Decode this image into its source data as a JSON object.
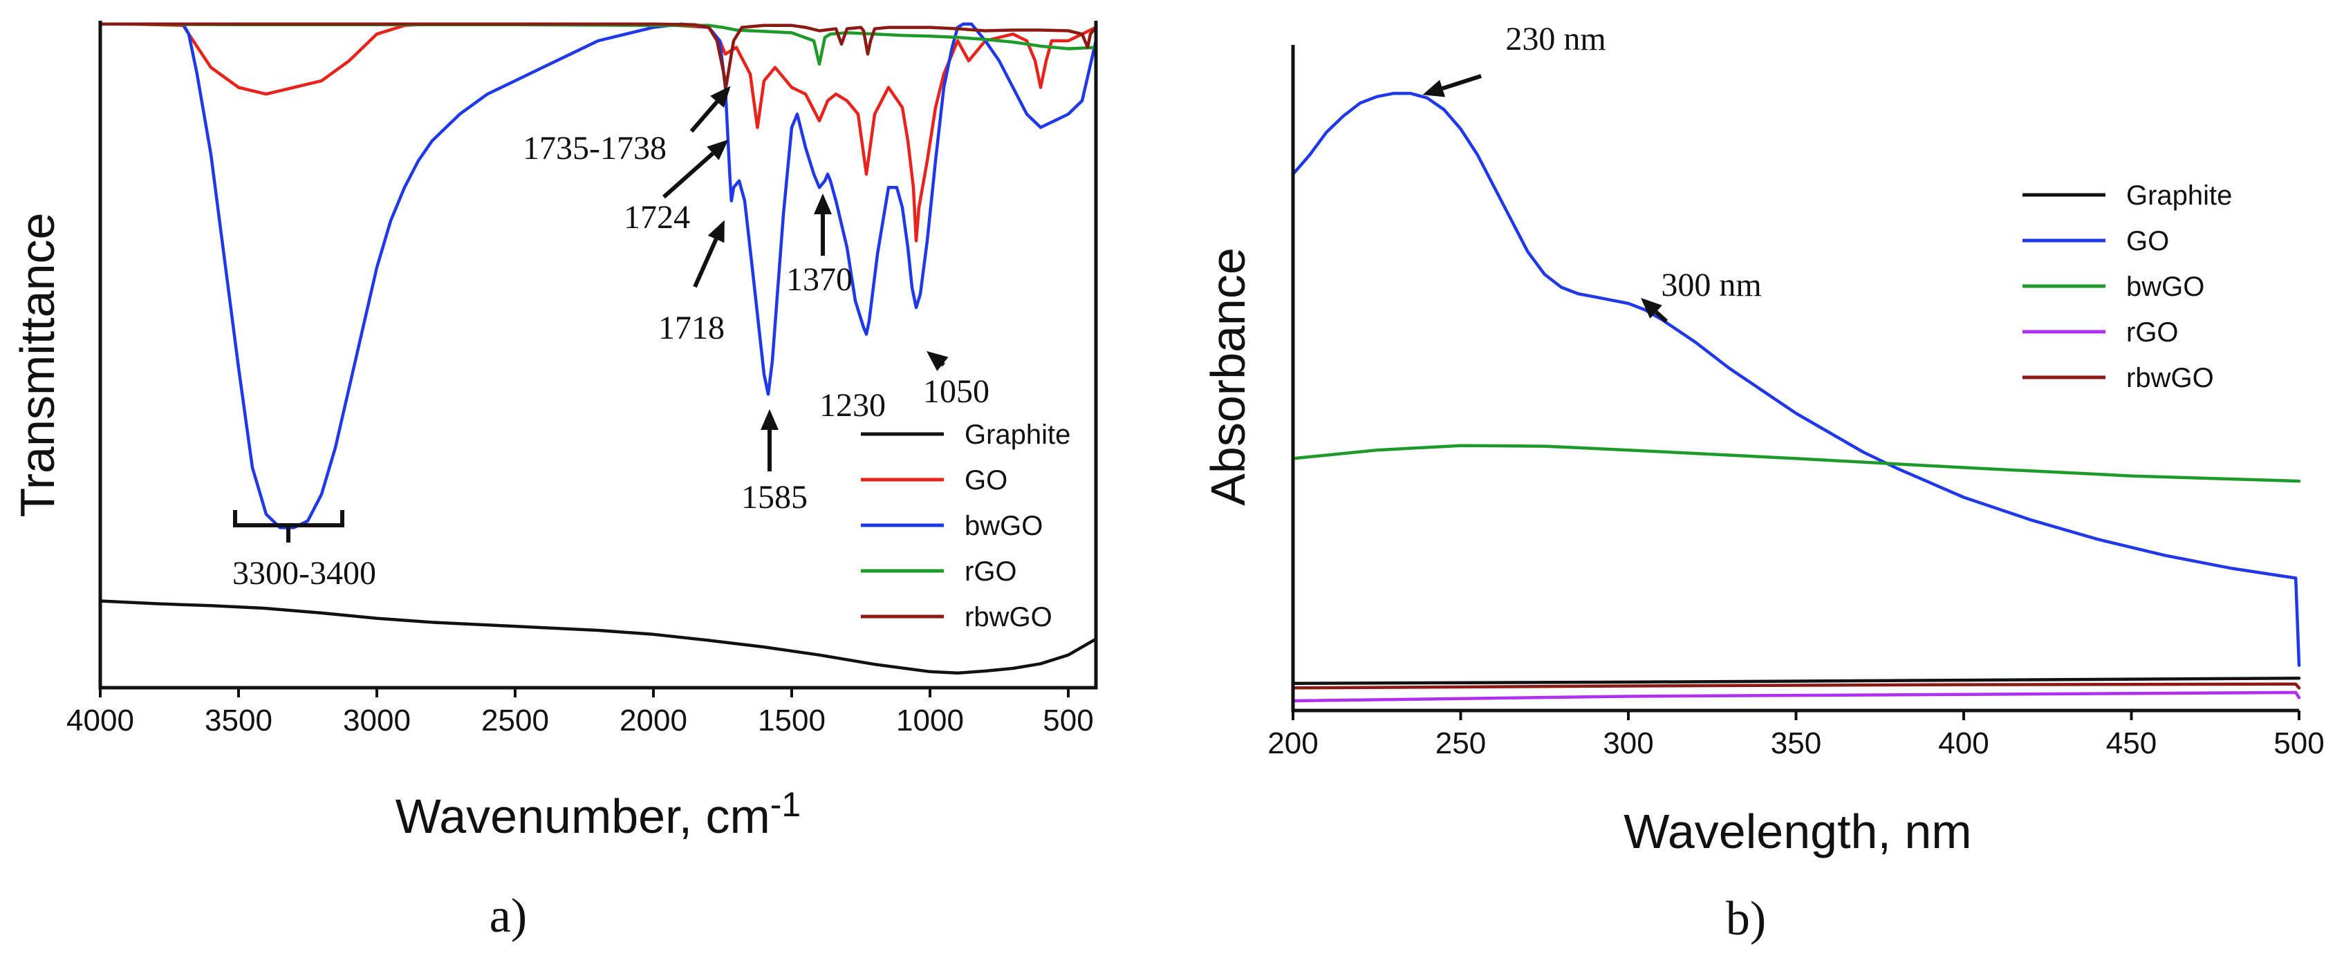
{
  "chart_data": [
    {
      "panel": "a)",
      "type": "line",
      "title": "",
      "xlabel": "Wavenumber, cm",
      "xlabel_sup": "-1",
      "ylabel": "Transmittance",
      "xlim": [
        4000,
        400
      ],
      "ylim": [
        0,
        100
      ],
      "xticks": [
        4000,
        3500,
        3000,
        2500,
        2000,
        1500,
        1000,
        500
      ],
      "legend": {
        "placement": "bottom-right",
        "entries": [
          "Graphite",
          "GO",
          "bwGO",
          "rGO",
          "rbwGO"
        ]
      },
      "series": [
        {
          "name": "Graphite",
          "color": "#111111",
          "x": [
            4000,
            3800,
            3600,
            3400,
            3200,
            3000,
            2800,
            2600,
            2400,
            2200,
            2000,
            1800,
            1600,
            1400,
            1200,
            1000,
            900,
            800,
            700,
            600,
            500,
            400
          ],
          "y": [
            13,
            12.6,
            12.3,
            11.9,
            11.2,
            10.4,
            9.8,
            9.4,
            9.0,
            8.6,
            8.0,
            7.1,
            6.1,
            4.9,
            3.5,
            2.4,
            2.2,
            2.5,
            2.9,
            3.6,
            4.9,
            7.3
          ]
        },
        {
          "name": "GO",
          "color": "#e8231b",
          "x": [
            4000,
            3900,
            3700,
            3680,
            3600,
            3500,
            3400,
            3300,
            3200,
            3100,
            3000,
            2900,
            2800,
            2600,
            2000,
            1800,
            1760,
            1740,
            1700,
            1650,
            1624,
            1600,
            1560,
            1500,
            1450,
            1400,
            1370,
            1340,
            1300,
            1260,
            1230,
            1200,
            1150,
            1100,
            1080,
            1060,
            1050,
            1040,
            1010,
            980,
            950,
            900,
            860,
            800,
            700,
            650,
            620,
            600,
            580,
            560,
            500,
            450,
            400
          ],
          "y": [
            99.5,
            99.5,
            99.3,
            98,
            93,
            90,
            89,
            90,
            91,
            94,
            98,
            99.3,
            99.5,
            99.5,
            99.5,
            99,
            97,
            95,
            96,
            92,
            84,
            91,
            93,
            90,
            89,
            85,
            88,
            89,
            88,
            86,
            77,
            86,
            90,
            87,
            82,
            75,
            67,
            72,
            79,
            87,
            92,
            97,
            94,
            97,
            98,
            97,
            94,
            90,
            94,
            97,
            97,
            98,
            99
          ]
        },
        {
          "name": "bwGO",
          "color": "#1f38e8",
          "x": [
            4000,
            3700,
            3680,
            3650,
            3600,
            3550,
            3500,
            3450,
            3400,
            3350,
            3300,
            3250,
            3200,
            3150,
            3100,
            3050,
            3000,
            2950,
            2900,
            2850,
            2800,
            2750,
            2700,
            2600,
            2500,
            2400,
            2300,
            2200,
            2100,
            2000,
            1900,
            1850,
            1800,
            1760,
            1740,
            1724,
            1718,
            1710,
            1690,
            1670,
            1640,
            1600,
            1585,
            1570,
            1530,
            1500,
            1480,
            1450,
            1420,
            1400,
            1380,
            1370,
            1360,
            1340,
            1300,
            1270,
            1240,
            1230,
            1220,
            1190,
            1150,
            1120,
            1100,
            1080,
            1065,
            1050,
            1035,
            1010,
            980,
            950,
            920,
            900,
            880,
            850,
            800,
            750,
            700,
            650,
            600,
            550,
            500,
            450,
            400
          ],
          "y": [
            99.5,
            99.5,
            98,
            92,
            80,
            64,
            48,
            33,
            26,
            24,
            24,
            25,
            29,
            36,
            45,
            54,
            63,
            70,
            75,
            79,
            82,
            84,
            86,
            89,
            91,
            93,
            95,
            97,
            98,
            99,
            99.5,
            99.3,
            99,
            97,
            90,
            77,
            73,
            75,
            76,
            73,
            62,
            47,
            44,
            49,
            71,
            84,
            86,
            81,
            77,
            75,
            76,
            77,
            76,
            73,
            66,
            58,
            54,
            53,
            55,
            65,
            75,
            75,
            72,
            66,
            60,
            57,
            59,
            67,
            79,
            90,
            96,
            99,
            99.5,
            99.5,
            97,
            94,
            90,
            86,
            84,
            85,
            86,
            88,
            97
          ]
        },
        {
          "name": "rGO",
          "color": "#1e9a2a",
          "x": [
            4000,
            3500,
            3000,
            2500,
            2000,
            1800,
            1750,
            1700,
            1600,
            1500,
            1420,
            1400,
            1380,
            1360,
            1300,
            1200,
            1100,
            1000,
            900,
            800,
            700,
            600,
            500,
            400
          ],
          "y": [
            99.5,
            99.4,
            99.4,
            99.4,
            99.3,
            99.3,
            99,
            98.6,
            98.4,
            98.2,
            97,
            93.5,
            97.5,
            98,
            98.2,
            98,
            97.8,
            97.7,
            97.5,
            97.2,
            96.8,
            96.2,
            95.8,
            96
          ]
        },
        {
          "name": "rbwGO",
          "color": "#8b1a14",
          "x": [
            4000,
            3500,
            3000,
            2500,
            2000,
            1850,
            1800,
            1770,
            1745,
            1738,
            1730,
            1710,
            1680,
            1600,
            1500,
            1450,
            1400,
            1340,
            1320,
            1300,
            1250,
            1240,
            1225,
            1215,
            1200,
            1150,
            1100,
            1050,
            1000,
            900,
            800,
            700,
            600,
            500,
            450,
            430,
            420,
            400
          ],
          "y": [
            99.5,
            99.5,
            99.5,
            99.5,
            99.5,
            99.4,
            99,
            97,
            92,
            90,
            92,
            97,
            99,
            99.3,
            99.3,
            99,
            98.5,
            98.8,
            96.5,
            98.8,
            99,
            98.5,
            95,
            97,
            98.8,
            99,
            99,
            99,
            99,
            98.8,
            98.5,
            98.6,
            98.6,
            98.5,
            98,
            96,
            98,
            99
          ]
        }
      ],
      "annotations": [
        {
          "text": "1735-1738",
          "x": 1736,
          "y": 90
        },
        {
          "text": "1724",
          "x": 1724,
          "y": 83
        },
        {
          "text": "1718",
          "x": 1718,
          "y": 73
        },
        {
          "text": "1370",
          "x": 1370,
          "y": 76
        },
        {
          "text": "1585",
          "x": 1585,
          "y": 44
        },
        {
          "text": "1230",
          "x": 1230,
          "y": 53
        },
        {
          "text": "1050",
          "x": 1050,
          "y": 57
        },
        {
          "text": "3300-3400",
          "x": 3350,
          "y": 24
        }
      ]
    },
    {
      "panel": "b)",
      "type": "line",
      "title": "",
      "xlabel": "Wavelength, nm",
      "ylabel": "Absorbance",
      "xlim": [
        200,
        500
      ],
      "ylim": [
        0,
        1.0
      ],
      "xticks": [
        200,
        250,
        300,
        350,
        400,
        450,
        500
      ],
      "legend": {
        "placement": "top-right",
        "entries": [
          "Graphite",
          "GO",
          "bwGO",
          "rGO",
          "rbwGO"
        ]
      },
      "series": [
        {
          "name": "Graphite",
          "color": "#111111",
          "x": [
            200,
            300,
            400,
            499,
            500
          ],
          "y": [
            0.012,
            0.014,
            0.017,
            0.02,
            0.02
          ]
        },
        {
          "name": "GO",
          "color": "#1f38e8",
          "x": [
            200,
            205,
            210,
            215,
            220,
            225,
            230,
            235,
            240,
            245,
            250,
            255,
            260,
            265,
            270,
            275,
            280,
            285,
            290,
            295,
            300,
            305,
            310,
            320,
            330,
            340,
            350,
            360,
            370,
            380,
            400,
            420,
            440,
            460,
            480,
            499,
            500
          ],
          "y": [
            0.8,
            0.83,
            0.865,
            0.89,
            0.91,
            0.92,
            0.925,
            0.925,
            0.918,
            0.9,
            0.87,
            0.83,
            0.78,
            0.73,
            0.68,
            0.645,
            0.625,
            0.615,
            0.61,
            0.605,
            0.6,
            0.59,
            0.575,
            0.54,
            0.5,
            0.465,
            0.43,
            0.4,
            0.37,
            0.345,
            0.3,
            0.265,
            0.235,
            0.21,
            0.19,
            0.175,
            0.04
          ]
        },
        {
          "name": "bwGO",
          "color": "#1e9a2a",
          "x": [
            200,
            225,
            250,
            275,
            300,
            350,
            400,
            450,
            500
          ],
          "y": [
            0.36,
            0.373,
            0.38,
            0.379,
            0.373,
            0.36,
            0.346,
            0.333,
            0.325
          ]
        },
        {
          "name": "rGO",
          "color": "#b030f0",
          "x": [
            200,
            300,
            400,
            499,
            500
          ],
          "y": [
            -0.015,
            -0.008,
            -0.005,
            -0.002,
            -0.01
          ]
        },
        {
          "name": "rbwGO",
          "color": "#8b1a14",
          "x": [
            200,
            300,
            400,
            499,
            500
          ],
          "y": [
            0.005,
            0.008,
            0.01,
            0.011,
            0.005
          ]
        }
      ],
      "annotations": [
        {
          "text": "230 nm",
          "x": 230,
          "y": 0.925
        },
        {
          "text": "300 nm",
          "x": 300,
          "y": 0.6
        }
      ]
    }
  ]
}
